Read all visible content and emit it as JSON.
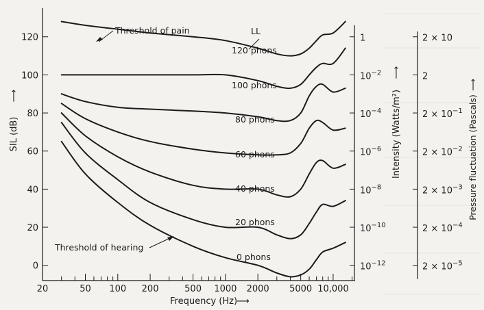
{
  "chart_data": {
    "type": "line",
    "title": "",
    "x_axis": {
      "label": "Frequency (Hz)",
      "label_arrow": "⟶",
      "scale": "log",
      "range": [
        20,
        16000
      ],
      "ticks": [
        {
          "value": 20,
          "label": "20"
        },
        {
          "value": 50,
          "label": "50"
        },
        {
          "value": 100,
          "label": "100"
        },
        {
          "value": 200,
          "label": "200"
        },
        {
          "value": 500,
          "label": "500"
        },
        {
          "value": 1000,
          "label": "1000"
        },
        {
          "value": 2000,
          "label": "2000"
        },
        {
          "value": 5000,
          "label": "5000"
        },
        {
          "value": 10000,
          "label": "10,000"
        }
      ]
    },
    "y_axis": {
      "label": "SIL (dB)",
      "label_arrow": "⟶",
      "range": [
        -8,
        135
      ],
      "ticks": [
        {
          "value": 0,
          "label": "0"
        },
        {
          "value": 20,
          "label": "20"
        },
        {
          "value": 40,
          "label": "40"
        },
        {
          "value": 60,
          "label": "60"
        },
        {
          "value": 80,
          "label": "80"
        },
        {
          "value": 100,
          "label": "100"
        },
        {
          "value": 120,
          "label": "120"
        }
      ]
    },
    "intensity_axis": {
      "label": "Intensity (Watts/m²)",
      "label_arrow": "⟶",
      "ticks": [
        {
          "value": 120,
          "base": "1",
          "exp": ""
        },
        {
          "value": 100,
          "base": "10",
          "exp": "−2"
        },
        {
          "value": 80,
          "base": "10",
          "exp": "−4"
        },
        {
          "value": 60,
          "base": "10",
          "exp": "−6"
        },
        {
          "value": 40,
          "base": "10",
          "exp": "−8"
        },
        {
          "value": 20,
          "base": "10",
          "exp": "−10"
        },
        {
          "value": 0,
          "base": "10",
          "exp": "−12"
        }
      ]
    },
    "pressure_axis": {
      "label": "Pressure fluctuation (Pascals)",
      "label_arrow": "⟶",
      "ticks": [
        {
          "value": 120,
          "base": "2 × 10",
          "exp": ""
        },
        {
          "value": 100,
          "base": "2",
          "exp": ""
        },
        {
          "value": 80,
          "base": "2 × 10",
          "exp": "−1"
        },
        {
          "value": 60,
          "base": "2 × 10",
          "exp": "−2"
        },
        {
          "value": 40,
          "base": "2 × 10",
          "exp": "−3"
        },
        {
          "value": 20,
          "base": "2 × 10",
          "exp": "−4"
        },
        {
          "value": 0,
          "base": "2 × 10",
          "exp": "−5"
        }
      ]
    },
    "series": [
      {
        "name": "Threshold of pain",
        "x": [
          30,
          50,
          100,
          200,
          500,
          1000,
          2000,
          3000,
          4000,
          5000,
          6000,
          7000,
          8000,
          10000,
          13000
        ],
        "y": [
          128,
          126,
          124,
          122,
          120,
          118,
          114,
          111,
          110,
          111,
          114,
          118,
          121,
          122,
          128
        ]
      },
      {
        "name": "120 phons",
        "x": [],
        "y": []
      },
      {
        "name": "100 phons",
        "x": [
          30,
          50,
          100,
          200,
          500,
          1000,
          2000,
          3000,
          4000,
          5000,
          6000,
          7000,
          8000,
          10000,
          13000
        ],
        "y": [
          100,
          100,
          100,
          100,
          100,
          100,
          97,
          94,
          93,
          95,
          100,
          104,
          106,
          106,
          114
        ]
      },
      {
        "name": "80 phons",
        "x": [
          30,
          50,
          100,
          200,
          500,
          1000,
          2000,
          3000,
          4000,
          5000,
          6000,
          7000,
          8000,
          10000,
          13000
        ],
        "y": [
          90,
          86,
          83,
          82,
          81,
          80,
          78,
          76,
          76,
          80,
          89,
          94,
          95,
          91,
          93
        ]
      },
      {
        "name": "60 phons",
        "x": [
          30,
          50,
          100,
          200,
          500,
          1000,
          2000,
          3000,
          4000,
          5000,
          6000,
          7000,
          8000,
          10000,
          13000
        ],
        "y": [
          85,
          77,
          70,
          65,
          61,
          59,
          58,
          58,
          59,
          64,
          72,
          76,
          75,
          71,
          72
        ]
      },
      {
        "name": "40 phons",
        "x": [
          30,
          50,
          100,
          200,
          500,
          1000,
          2000,
          3000,
          4000,
          5000,
          6000,
          7000,
          8000,
          10000,
          13000
        ],
        "y": [
          80,
          68,
          57,
          49,
          42,
          40,
          40,
          37,
          36,
          40,
          48,
          54,
          55,
          51,
          53
        ]
      },
      {
        "name": "20 phons",
        "x": [
          30,
          50,
          100,
          200,
          500,
          1000,
          2000,
          3000,
          4000,
          5000,
          6000,
          7000,
          8000,
          10000,
          13000
        ],
        "y": [
          75,
          59,
          45,
          33,
          24,
          20,
          20,
          16,
          14,
          16,
          22,
          28,
          32,
          31,
          34
        ]
      },
      {
        "name": "0 phons",
        "x": [
          30,
          50,
          100,
          200,
          500,
          1000,
          2000,
          3000,
          4000,
          5000,
          6000,
          7000,
          8000,
          10000,
          13000
        ],
        "y": [
          65,
          48,
          33,
          21,
          10,
          4,
          0,
          -4,
          -6,
          -5,
          -2,
          3,
          7,
          9,
          12
        ]
      }
    ],
    "labels": [
      {
        "text": "Threshold of pain",
        "series": "Threshold of pain"
      },
      {
        "text": "LL"
      },
      {
        "text": "120 phons"
      },
      {
        "text": "100 phons"
      },
      {
        "text": "80 phons"
      },
      {
        "text": "60 phons"
      },
      {
        "text": "40 phons"
      },
      {
        "text": "20 phons"
      },
      {
        "text": "0 phons"
      },
      {
        "text": "Threshold of hearing",
        "series": "0 phons"
      }
    ],
    "grid": false,
    "legend": "none"
  }
}
